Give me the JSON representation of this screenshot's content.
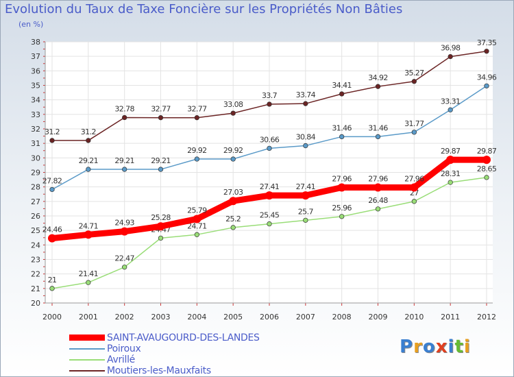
{
  "title": "Evolution du Taux de Taxe Foncière sur les Propriétés Non Bâties",
  "subtitle": "(en %)",
  "logo_text": "Proxiti",
  "chart_data": {
    "type": "line",
    "title": "Evolution du Taux de Taxe Foncière sur les Propriétés Non Bâties",
    "ylabel": "(en %)",
    "xlabel": "",
    "categories": [
      "2000",
      "2001",
      "2002",
      "2003",
      "2004",
      "2005",
      "2006",
      "2007",
      "2008",
      "2009",
      "2010",
      "2011",
      "2012"
    ],
    "ylim": [
      20,
      38
    ],
    "yticks": [
      "20",
      "21",
      "22",
      "23",
      "24",
      "25",
      "26",
      "27",
      "28",
      "29",
      "30",
      "31",
      "32",
      "33",
      "34",
      "35",
      "36",
      "37",
      "38"
    ],
    "grid": true,
    "legend_position": "bottom-left",
    "series": [
      {
        "name": "Moutiers-les-Mauxfaits",
        "color": "#6b2424",
        "values": [
          31.2,
          31.2,
          32.78,
          32.77,
          32.77,
          33.08,
          33.7,
          33.74,
          34.41,
          34.92,
          35.27,
          36.98,
          37.35
        ],
        "labels": [
          "31.2",
          "31.2",
          "32.78",
          "32.77",
          "32.77",
          "33.08",
          "33.7",
          "33.74",
          "34.41",
          "34.92",
          "35.27",
          "36.98",
          "37.35"
        ]
      },
      {
        "name": "Poiroux",
        "color": "#5a9ac8",
        "values": [
          27.82,
          29.21,
          29.21,
          29.21,
          29.92,
          29.92,
          30.66,
          30.84,
          31.46,
          31.46,
          31.77,
          33.31,
          34.96
        ],
        "labels": [
          "27.82",
          "29.21",
          "29.21",
          "29.21",
          "29.92",
          "29.92",
          "30.66",
          "30.84",
          "31.46",
          "31.46",
          "31.77",
          "33.31",
          "34.96"
        ]
      },
      {
        "name": "Avrillé",
        "color": "#99dd77",
        "values": [
          21,
          21.41,
          22.47,
          24.47,
          24.71,
          25.2,
          25.45,
          25.7,
          25.96,
          26.48,
          27,
          28.31,
          28.65
        ],
        "labels": [
          "21",
          "21.41",
          "22.47",
          "24.47",
          "24.71",
          "25.2",
          "25.45",
          "25.7",
          "25.96",
          "26.48",
          "27",
          "28.31",
          "28.65"
        ]
      },
      {
        "name": "SAINT-AVAUGOURD-DES-LANDES",
        "color": "#ff0000",
        "values": [
          24.46,
          24.71,
          24.93,
          25.28,
          25.79,
          27.03,
          27.41,
          27.41,
          27.96,
          27.96,
          27.96,
          29.87,
          29.87
        ],
        "labels": [
          "24.46",
          "24.71",
          "24.93",
          "25.28",
          "25.79",
          "27.03",
          "27.41",
          "27.41",
          "27.96",
          "27.96",
          "27.96",
          "29.87",
          "29.87"
        ]
      }
    ]
  },
  "legend": [
    {
      "name": "SAINT-AVAUGOURD-DES-LANDES",
      "color": "#ff0000"
    },
    {
      "name": "Poiroux",
      "color": "#5a9ac8"
    },
    {
      "name": "Avrillé",
      "color": "#99dd77"
    },
    {
      "name": "Moutiers-les-Mauxfaits",
      "color": "#6b2424"
    }
  ]
}
